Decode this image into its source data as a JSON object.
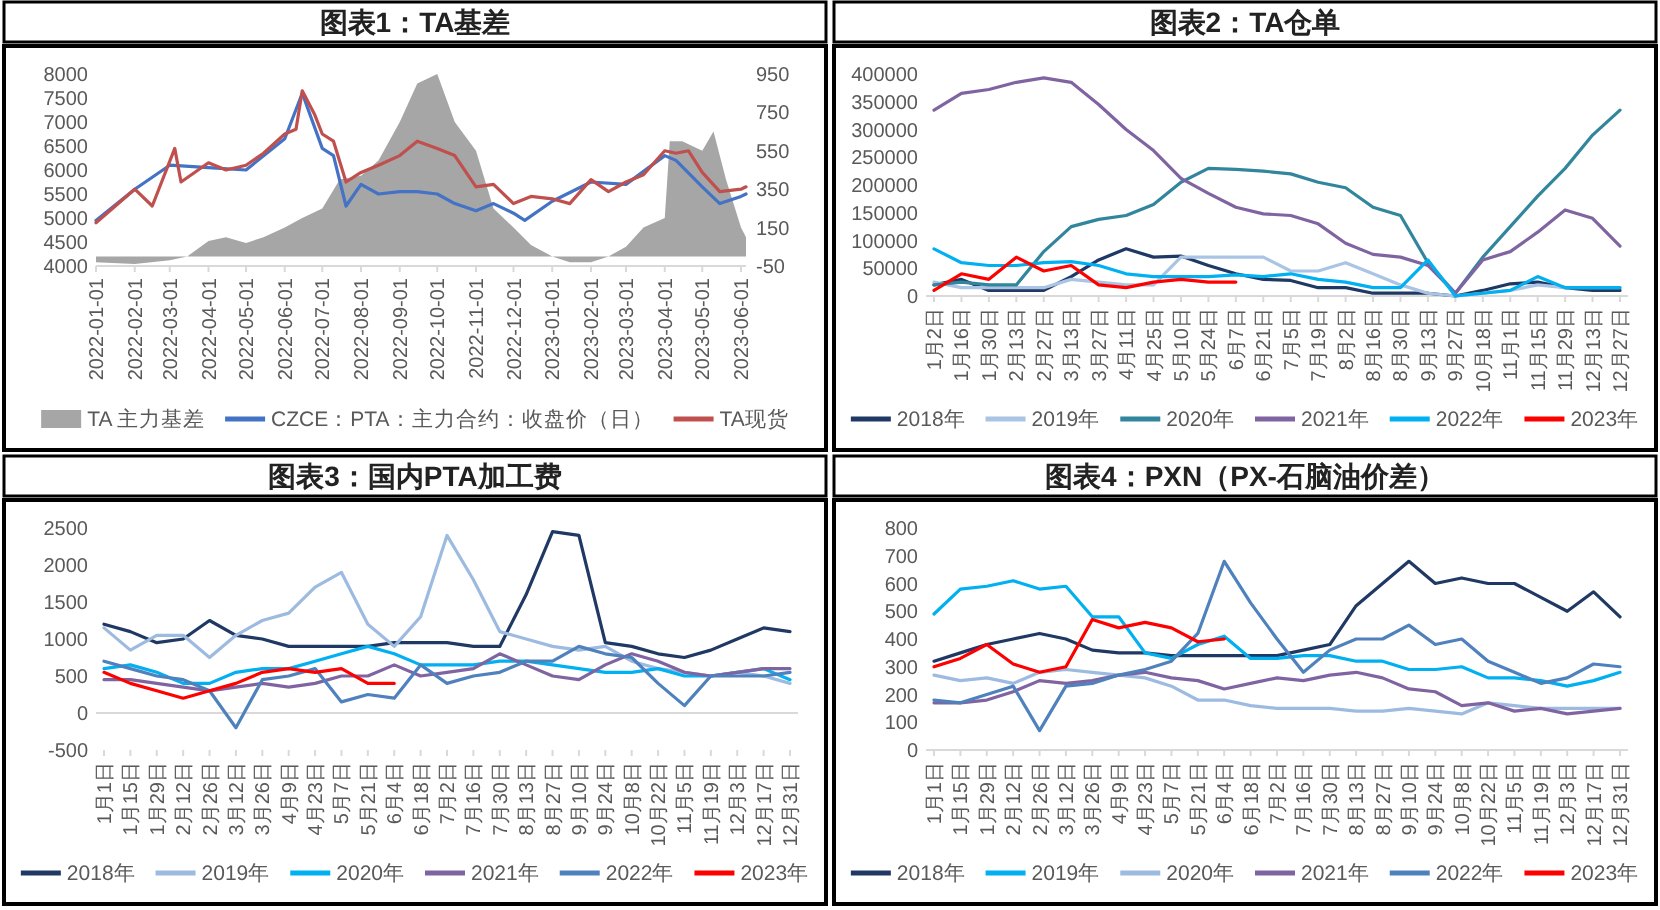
{
  "chart_data": [
    {
      "type": "line",
      "title": "图表1：TA基差",
      "legend": "bottom",
      "xlim": [
        "2022-01-01",
        "2023-06-05"
      ],
      "xticks": [
        "2022-01-01",
        "2022-02-01",
        "2022-03-01",
        "2022-04-01",
        "2022-05-01",
        "2022-06-01",
        "2022-07-01",
        "2022-08-01",
        "2022-09-01",
        "2022-10-01",
        "2022-11-01",
        "2022-12-01",
        "2023-01-01",
        "2023-02-01",
        "2023-03-01",
        "2023-04-01",
        "2023-05-01",
        "2023-06-01"
      ],
      "ylim": [
        4000,
        8000
      ],
      "yticks": [
        4000,
        4500,
        5000,
        5500,
        6000,
        6500,
        7000,
        7500,
        8000
      ],
      "y2lim": [
        -50,
        950
      ],
      "y2ticks": [
        -50,
        150,
        350,
        550,
        750,
        950
      ],
      "series": [
        {
          "name": "TA 主力基差",
          "type": "area",
          "axis": "y2",
          "color": "#a6a6a6",
          "x": [
            "2022-01-01",
            "2022-02-01",
            "2022-03-01",
            "2022-03-15",
            "2022-04-01",
            "2022-04-15",
            "2022-05-01",
            "2022-05-15",
            "2022-06-01",
            "2022-06-15",
            "2022-07-01",
            "2022-07-15",
            "2022-08-01",
            "2022-08-15",
            "2022-09-01",
            "2022-09-15",
            "2022-10-01",
            "2022-10-15",
            "2022-11-01",
            "2022-11-15",
            "2022-12-01",
            "2022-12-15",
            "2023-01-01",
            "2023-01-15",
            "2023-02-01",
            "2023-02-15",
            "2023-03-01",
            "2023-03-15",
            "2023-04-01",
            "2023-04-05",
            "2023-04-15",
            "2023-05-01",
            "2023-05-10",
            "2023-05-20",
            "2023-06-01",
            "2023-06-05"
          ],
          "values": [
            -30,
            -40,
            -20,
            0,
            80,
            100,
            70,
            100,
            150,
            200,
            250,
            400,
            420,
            500,
            700,
            900,
            950,
            700,
            550,
            250,
            150,
            60,
            0,
            -30,
            -30,
            0,
            50,
            150,
            200,
            600,
            600,
            550,
            650,
            400,
            150,
            100
          ]
        },
        {
          "name": "CZCE：PTA：主力合约：收盘价（日）",
          "color": "#4472c4",
          "x": [
            "2022-01-01",
            "2022-02-01",
            "2022-03-01",
            "2022-04-01",
            "2022-05-01",
            "2022-06-01",
            "2022-06-15",
            "2022-07-01",
            "2022-07-10",
            "2022-07-20",
            "2022-08-01",
            "2022-08-15",
            "2022-09-01",
            "2022-09-15",
            "2022-10-01",
            "2022-10-15",
            "2022-11-01",
            "2022-11-15",
            "2022-12-01",
            "2022-12-10",
            "2023-01-01",
            "2023-02-01",
            "2023-03-01",
            "2023-04-01",
            "2023-04-10",
            "2023-05-01",
            "2023-05-15",
            "2023-06-01",
            "2023-06-05"
          ],
          "values": [
            4950,
            5600,
            6100,
            6050,
            6000,
            6650,
            7600,
            6450,
            6300,
            5250,
            5700,
            5500,
            5550,
            5550,
            5500,
            5300,
            5150,
            5300,
            5100,
            4950,
            5350,
            5750,
            5700,
            6300,
            6200,
            5650,
            5300,
            5450,
            5500
          ]
        },
        {
          "name": "TA现货",
          "color": "#c0504d",
          "x": [
            "2022-01-01",
            "2022-02-01",
            "2022-02-15",
            "2022-03-05",
            "2022-03-10",
            "2022-04-01",
            "2022-04-15",
            "2022-05-01",
            "2022-05-15",
            "2022-06-01",
            "2022-06-10",
            "2022-06-15",
            "2022-06-25",
            "2022-07-01",
            "2022-07-10",
            "2022-07-20",
            "2022-08-01",
            "2022-08-15",
            "2022-09-01",
            "2022-09-15",
            "2022-10-01",
            "2022-10-15",
            "2022-11-01",
            "2022-11-15",
            "2022-12-01",
            "2022-12-15",
            "2023-01-01",
            "2023-01-15",
            "2023-02-01",
            "2023-02-15",
            "2023-03-01",
            "2023-03-15",
            "2023-04-01",
            "2023-04-10",
            "2023-04-20",
            "2023-05-01",
            "2023-05-15",
            "2023-06-01",
            "2023-06-05"
          ],
          "values": [
            4900,
            5600,
            5250,
            6450,
            5750,
            6150,
            6000,
            6100,
            6350,
            6750,
            6850,
            7650,
            7150,
            6750,
            6600,
            5750,
            5950,
            6100,
            6300,
            6600,
            6450,
            6300,
            5650,
            5700,
            5300,
            5450,
            5400,
            5300,
            5800,
            5550,
            5750,
            5900,
            6400,
            6350,
            6400,
            5950,
            5550,
            5600,
            5650
          ]
        }
      ]
    },
    {
      "type": "line",
      "title": "图表2：TA仓单",
      "legend": "bottom",
      "categories": [
        "1月2日",
        "1月16日",
        "1月30日",
        "2月13日",
        "2月27日",
        "3月13日",
        "3月27日",
        "4月11日",
        "4月25日",
        "5月10日",
        "5月24日",
        "6月7日",
        "6月21日",
        "7月5日",
        "7月19日",
        "8月2日",
        "8月16日",
        "8月30日",
        "9月13日",
        "9月27日",
        "10月18日",
        "11月1日",
        "11月15日",
        "11月29日",
        "12月13日",
        "12月27日"
      ],
      "ylim": [
        0,
        400000
      ],
      "yticks": [
        0,
        50000,
        100000,
        150000,
        200000,
        250000,
        300000,
        350000,
        400000
      ],
      "series": [
        {
          "name": "2018年",
          "color": "#1f3864",
          "values": [
            20000,
            30000,
            10000,
            10000,
            10000,
            35000,
            65000,
            85000,
            70000,
            72000,
            55000,
            40000,
            30000,
            28000,
            15000,
            15000,
            5000,
            5000,
            5000,
            0,
            10000,
            22000,
            25000,
            15000,
            10000,
            10000
          ]
        },
        {
          "name": "2019年",
          "color": "#a9c4e4",
          "values": [
            25000,
            15000,
            15000,
            15000,
            15000,
            30000,
            25000,
            20000,
            20000,
            70000,
            70000,
            70000,
            70000,
            45000,
            45000,
            60000,
            40000,
            20000,
            5000,
            0,
            5000,
            10000,
            20000,
            15000,
            15000,
            15000
          ]
        },
        {
          "name": "2020年",
          "color": "#31859c",
          "values": [
            20000,
            25000,
            20000,
            20000,
            80000,
            125000,
            138000,
            145000,
            165000,
            205000,
            230000,
            228000,
            225000,
            220000,
            205000,
            195000,
            160000,
            145000,
            60000,
            5000,
            70000,
            125000,
            180000,
            230000,
            290000,
            335000
          ]
        },
        {
          "name": "2021年",
          "color": "#8064a2",
          "values": [
            335000,
            365000,
            372000,
            385000,
            393000,
            385000,
            345000,
            300000,
            262000,
            212000,
            185000,
            160000,
            148000,
            145000,
            130000,
            95000,
            75000,
            70000,
            55000,
            5000,
            65000,
            80000,
            115000,
            155000,
            140000,
            90000
          ]
        },
        {
          "name": "2022年",
          "color": "#00b0f0",
          "values": [
            85000,
            60000,
            55000,
            55000,
            60000,
            62000,
            55000,
            40000,
            35000,
            35000,
            35000,
            38000,
            35000,
            40000,
            30000,
            25000,
            15000,
            15000,
            65000,
            0,
            5000,
            10000,
            35000,
            15000,
            15000,
            15000
          ]
        },
        {
          "name": "2023年",
          "color": "#ff0000",
          "values": [
            10000,
            40000,
            30000,
            70000,
            45000,
            55000,
            20000,
            15000,
            25000,
            30000,
            25000,
            25000,
            null,
            null,
            null,
            null,
            null,
            null,
            null,
            null,
            null,
            null,
            null,
            null,
            null,
            null
          ]
        }
      ]
    },
    {
      "type": "line",
      "title": "图表3：国内PTA加工费",
      "legend": "bottom",
      "categories": [
        "1月1日",
        "1月15日",
        "1月29日",
        "2月12日",
        "2月26日",
        "3月12日",
        "3月26日",
        "4月9日",
        "4月23日",
        "5月7日",
        "5月21日",
        "6月4日",
        "6月18日",
        "7月2日",
        "7月16日",
        "7月30日",
        "8月13日",
        "8月27日",
        "9月10日",
        "9月24日",
        "10月8日",
        "10月22日",
        "11月5日",
        "11月19日",
        "12月3日",
        "12月17日",
        "12月31日"
      ],
      "ylim": [
        -500,
        2500
      ],
      "yticks": [
        -500,
        0,
        500,
        1000,
        1500,
        2000,
        2500
      ],
      "series": [
        {
          "name": "2018年",
          "color": "#1f3864",
          "values": [
            1200,
            1100,
            950,
            1000,
            1250,
            1050,
            1000,
            900,
            900,
            900,
            900,
            950,
            950,
            950,
            900,
            900,
            1600,
            2450,
            2400,
            950,
            900,
            800,
            750,
            850,
            1000,
            1150,
            1100
          ]
        },
        {
          "name": "2019年",
          "color": "#9dbbe0",
          "values": [
            1150,
            850,
            1050,
            1050,
            750,
            1050,
            1250,
            1350,
            1700,
            1900,
            1200,
            900,
            1300,
            2400,
            1800,
            1100,
            1000,
            900,
            850,
            900,
            700,
            600,
            550,
            500,
            550,
            500,
            400
          ]
        },
        {
          "name": "2020年",
          "color": "#00b0f0",
          "values": [
            600,
            650,
            550,
            400,
            400,
            550,
            600,
            600,
            700,
            800,
            900,
            800,
            650,
            650,
            650,
            700,
            700,
            650,
            600,
            550,
            550,
            600,
            500,
            500,
            550,
            600,
            450
          ]
        },
        {
          "name": "2021年",
          "color": "#8064a2",
          "values": [
            450,
            450,
            400,
            350,
            300,
            350,
            400,
            350,
            400,
            500,
            500,
            650,
            500,
            550,
            600,
            800,
            650,
            500,
            450,
            650,
            800,
            700,
            550,
            500,
            550,
            600,
            600
          ]
        },
        {
          "name": "2022年",
          "color": "#4f81bd",
          "values": [
            700,
            600,
            500,
            450,
            300,
            -200,
            450,
            500,
            600,
            150,
            250,
            200,
            650,
            400,
            500,
            550,
            700,
            700,
            900,
            800,
            750,
            400,
            100,
            500,
            500,
            500,
            550
          ]
        },
        {
          "name": "2023年",
          "color": "#ff0000",
          "values": [
            550,
            400,
            300,
            200,
            300,
            400,
            550,
            600,
            550,
            600,
            400,
            400,
            null,
            null,
            null,
            null,
            null,
            null,
            null,
            null,
            null,
            null,
            null,
            null,
            null,
            null,
            null
          ]
        }
      ]
    },
    {
      "type": "line",
      "title": "图表4：PXN（PX-石脑油价差）",
      "legend": "bottom",
      "categories": [
        "1月1日",
        "1月15日",
        "1月29日",
        "2月12日",
        "2月26日",
        "3月12日",
        "3月26日",
        "4月9日",
        "4月23日",
        "5月7日",
        "5月21日",
        "6月4日",
        "6月18日",
        "7月2日",
        "7月16日",
        "7月30日",
        "8月13日",
        "8月27日",
        "9月10日",
        "9月24日",
        "10月8日",
        "10月22日",
        "11月5日",
        "11月19日",
        "12月3日",
        "12月17日",
        "12月31日"
      ],
      "ylim": [
        0,
        800
      ],
      "yticks": [
        0,
        100,
        200,
        300,
        400,
        500,
        600,
        700,
        800
      ],
      "series": [
        {
          "name": "2018年",
          "color": "#1f3864",
          "values": [
            320,
            350,
            380,
            400,
            420,
            400,
            360,
            350,
            350,
            340,
            340,
            340,
            340,
            340,
            360,
            380,
            520,
            600,
            680,
            600,
            620,
            600,
            600,
            550,
            500,
            570,
            480
          ]
        },
        {
          "name": "2019年",
          "color": "#00b0f0",
          "values": [
            490,
            580,
            590,
            610,
            580,
            590,
            480,
            480,
            350,
            330,
            380,
            410,
            330,
            330,
            340,
            340,
            320,
            320,
            290,
            290,
            300,
            260,
            260,
            250,
            230,
            250,
            280
          ]
        },
        {
          "name": "2020年",
          "color": "#9dbbe0",
          "values": [
            270,
            250,
            260,
            240,
            280,
            290,
            280,
            270,
            260,
            230,
            180,
            180,
            160,
            150,
            150,
            150,
            140,
            140,
            150,
            140,
            130,
            170,
            160,
            150,
            150,
            150,
            150
          ]
        },
        {
          "name": "2021年",
          "color": "#8064a2",
          "values": [
            170,
            170,
            180,
            210,
            250,
            240,
            250,
            270,
            280,
            260,
            250,
            220,
            240,
            260,
            250,
            270,
            280,
            260,
            220,
            210,
            160,
            170,
            140,
            150,
            130,
            140,
            150
          ]
        },
        {
          "name": "2022年",
          "color": "#4f81bd",
          "values": [
            180,
            170,
            200,
            230,
            70,
            230,
            240,
            270,
            290,
            320,
            420,
            680,
            530,
            400,
            280,
            360,
            400,
            400,
            450,
            380,
            400,
            320,
            280,
            240,
            260,
            310,
            300
          ]
        },
        {
          "name": "2023年",
          "color": "#ff0000",
          "values": [
            300,
            330,
            380,
            310,
            280,
            300,
            470,
            440,
            460,
            440,
            390,
            400,
            null,
            null,
            null,
            null,
            null,
            null,
            null,
            null,
            null,
            null,
            null,
            null,
            null,
            null,
            null
          ]
        }
      ]
    }
  ]
}
